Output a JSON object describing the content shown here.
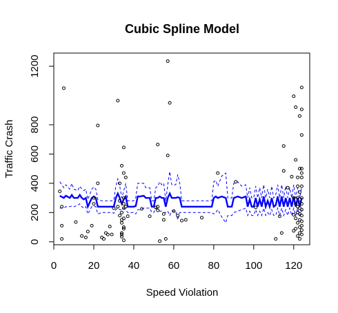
{
  "chart_data": {
    "type": "scatter",
    "title": "Cubic Spline Model",
    "xlabel": "Speed Violation",
    "ylabel": "Traffic Crash",
    "xlim": [
      0,
      128
    ],
    "ylim": [
      -20,
      1290
    ],
    "x_ticks": [
      "0",
      "20",
      "40",
      "60",
      "80",
      "100",
      "120"
    ],
    "y_ticks": [
      "0",
      "200",
      "400",
      "600",
      "800",
      "1200"
    ],
    "y_tick_values": [
      0,
      200,
      400,
      600,
      800,
      1200
    ],
    "x_tick_values": [
      0,
      20,
      40,
      60,
      80,
      100,
      120
    ],
    "grid": false,
    "legend": "none",
    "points": [
      [
        3,
        345
      ],
      [
        4,
        240
      ],
      [
        4,
        110
      ],
      [
        4,
        20
      ],
      [
        5,
        1050
      ],
      [
        11,
        135
      ],
      [
        14,
        40
      ],
      [
        16,
        30
      ],
      [
        17,
        70
      ],
      [
        19,
        110
      ],
      [
        20,
        260
      ],
      [
        20,
        300
      ],
      [
        22,
        795
      ],
      [
        22,
        400
      ],
      [
        24,
        30
      ],
      [
        25,
        20
      ],
      [
        26,
        60
      ],
      [
        27,
        50
      ],
      [
        28,
        105
      ],
      [
        29,
        50
      ],
      [
        30,
        230
      ],
      [
        32,
        965
      ],
      [
        32,
        240
      ],
      [
        33,
        400
      ],
      [
        33,
        280
      ],
      [
        33,
        180
      ],
      [
        34,
        520
      ],
      [
        34,
        200
      ],
      [
        34,
        150
      ],
      [
        34,
        130
      ],
      [
        34,
        60
      ],
      [
        34,
        50
      ],
      [
        34,
        35
      ],
      [
        35,
        645
      ],
      [
        35,
        470
      ],
      [
        35,
        300
      ],
      [
        35,
        260
      ],
      [
        35,
        230
      ],
      [
        35,
        160
      ],
      [
        35,
        100
      ],
      [
        35,
        90
      ],
      [
        35,
        10
      ],
      [
        36,
        440
      ],
      [
        36,
        240
      ],
      [
        37,
        175
      ],
      [
        44,
        225
      ],
      [
        48,
        175
      ],
      [
        51,
        235
      ],
      [
        52,
        665
      ],
      [
        52,
        240
      ],
      [
        52,
        215
      ],
      [
        53,
        5
      ],
      [
        55,
        150
      ],
      [
        55,
        190
      ],
      [
        56,
        20
      ],
      [
        57,
        1235
      ],
      [
        57,
        590
      ],
      [
        58,
        950
      ],
      [
        60,
        210
      ],
      [
        62,
        180
      ],
      [
        64,
        145
      ],
      [
        66,
        150
      ],
      [
        74,
        165
      ],
      [
        82,
        470
      ],
      [
        91,
        410
      ],
      [
        101,
        235
      ],
      [
        111,
        20
      ],
      [
        113,
        175
      ],
      [
        114,
        60
      ],
      [
        115,
        485
      ],
      [
        115,
        655
      ],
      [
        117,
        370
      ],
      [
        119,
        445
      ],
      [
        120,
        995
      ],
      [
        120,
        300
      ],
      [
        120,
        185
      ],
      [
        120,
        75
      ],
      [
        121,
        920
      ],
      [
        121,
        560
      ],
      [
        121,
        260
      ],
      [
        121,
        160
      ],
      [
        121,
        90
      ],
      [
        122,
        440
      ],
      [
        122,
        380
      ],
      [
        122,
        300
      ],
      [
        122,
        240
      ],
      [
        122,
        200
      ],
      [
        122,
        130
      ],
      [
        122,
        40
      ],
      [
        123,
        860
      ],
      [
        123,
        500
      ],
      [
        123,
        340
      ],
      [
        123,
        270
      ],
      [
        123,
        230
      ],
      [
        123,
        190
      ],
      [
        123,
        150
      ],
      [
        123,
        100
      ],
      [
        123,
        60
      ],
      [
        123,
        20
      ],
      [
        124,
        1055
      ],
      [
        124,
        905
      ],
      [
        124,
        730
      ],
      [
        124,
        500
      ],
      [
        124,
        470
      ],
      [
        124,
        440
      ],
      [
        124,
        380
      ],
      [
        124,
        300
      ],
      [
        124,
        260
      ],
      [
        124,
        220
      ],
      [
        124,
        180
      ],
      [
        124,
        140
      ],
      [
        124,
        110
      ],
      [
        124,
        80
      ],
      [
        124,
        50
      ]
    ],
    "series": [
      {
        "style": "solid",
        "color": "#0000ff",
        "x": [
          3,
          5,
          6,
          8,
          9,
          10,
          12,
          13,
          14,
          15,
          16,
          17,
          19,
          20,
          21,
          22,
          24,
          25,
          26,
          27,
          28,
          29,
          30,
          31,
          32,
          33,
          34,
          35,
          36,
          37,
          38,
          40,
          41,
          42,
          43,
          45,
          46,
          48,
          49,
          50,
          51,
          52,
          53,
          54,
          55,
          56,
          57,
          58,
          59,
          61,
          62,
          63,
          64,
          66,
          67,
          69,
          70,
          72,
          74,
          76,
          78,
          79,
          80,
          81,
          82,
          84,
          86,
          87,
          88,
          89,
          90,
          92,
          94,
          96,
          97,
          98,
          99,
          100,
          101,
          102,
          103,
          104,
          105,
          106,
          107,
          108,
          109,
          110,
          111,
          112,
          113,
          114,
          115,
          116,
          117,
          118,
          119,
          120,
          121,
          122,
          123,
          124
        ],
        "y": [
          315,
          300,
          315,
          300,
          320,
          300,
          300,
          320,
          300,
          290,
          300,
          240,
          300,
          310,
          300,
          240,
          240,
          240,
          240,
          240,
          240,
          240,
          240,
          300,
          330,
          300,
          260,
          290,
          310,
          240,
          240,
          240,
          245,
          310,
          310,
          315,
          300,
          300,
          240,
          240,
          300,
          300,
          310,
          300,
          300,
          240,
          300,
          330,
          300,
          300,
          305,
          300,
          240,
          240,
          240,
          240,
          240,
          240,
          240,
          240,
          240,
          240,
          300,
          310,
          300,
          310,
          300,
          240,
          240,
          240,
          300,
          310,
          300,
          310,
          240,
          290,
          240,
          240,
          300,
          240,
          290,
          240,
          310,
          240,
          280,
          240,
          300,
          240,
          250,
          310,
          240,
          310,
          240,
          300,
          240,
          300,
          240,
          310,
          240,
          300,
          240,
          300
        ]
      },
      {
        "style": "dashed",
        "color": "#0000ff",
        "x": [
          3,
          5,
          6,
          8,
          9,
          10,
          12,
          13,
          14,
          15,
          16,
          17,
          19,
          20,
          21,
          22,
          24,
          25,
          26,
          27,
          28,
          29,
          30,
          31,
          32,
          33,
          34,
          35,
          36,
          37,
          38,
          40,
          41,
          42,
          43,
          45,
          46,
          48,
          49,
          50,
          51,
          52,
          53,
          54,
          55,
          56,
          57,
          58,
          59,
          61,
          62,
          63,
          64,
          66,
          67,
          69,
          70,
          72,
          74,
          76,
          78,
          79,
          80,
          81,
          82,
          84,
          86,
          87,
          88,
          89,
          90,
          92,
          94,
          96,
          97,
          98,
          99,
          100,
          101,
          102,
          103,
          104,
          105,
          106,
          107,
          108,
          109,
          110,
          111,
          112,
          113,
          114,
          115,
          116,
          117,
          118,
          119,
          120,
          121,
          122,
          123,
          124
        ],
        "y": [
          410,
          370,
          390,
          360,
          400,
          360,
          350,
          380,
          360,
          350,
          360,
          290,
          360,
          375,
          360,
          290,
          280,
          280,
          280,
          280,
          280,
          280,
          285,
          380,
          430,
          380,
          300,
          350,
          400,
          280,
          280,
          280,
          300,
          400,
          400,
          400,
          370,
          370,
          280,
          280,
          370,
          380,
          410,
          390,
          400,
          280,
          390,
          480,
          390,
          390,
          460,
          400,
          280,
          280,
          280,
          280,
          280,
          280,
          280,
          280,
          280,
          280,
          410,
          420,
          380,
          450,
          470,
          300,
          300,
          300,
          400,
          410,
          380,
          390,
          300,
          370,
          300,
          300,
          380,
          300,
          370,
          300,
          390,
          300,
          360,
          300,
          380,
          300,
          320,
          390,
          300,
          390,
          300,
          380,
          300,
          370,
          300,
          390,
          300,
          370,
          300,
          380
        ]
      },
      {
        "style": "dashed",
        "color": "#0000ff",
        "x": [
          3,
          5,
          6,
          8,
          9,
          10,
          12,
          13,
          14,
          15,
          16,
          17,
          19,
          20,
          21,
          22,
          24,
          25,
          26,
          27,
          28,
          29,
          30,
          31,
          32,
          33,
          34,
          35,
          36,
          37,
          38,
          40,
          41,
          42,
          43,
          45,
          46,
          48,
          49,
          50,
          51,
          52,
          53,
          54,
          55,
          56,
          57,
          58,
          59,
          61,
          62,
          63,
          64,
          66,
          67,
          69,
          70,
          72,
          74,
          76,
          78,
          79,
          80,
          81,
          82,
          84,
          86,
          87,
          88,
          89,
          90,
          92,
          94,
          96,
          97,
          98,
          99,
          100,
          101,
          102,
          103,
          104,
          105,
          106,
          107,
          108,
          109,
          110,
          111,
          112,
          113,
          114,
          115,
          116,
          117,
          118,
          119,
          120,
          121,
          122,
          123,
          124
        ],
        "y": [
          230,
          230,
          240,
          240,
          245,
          240,
          250,
          260,
          240,
          230,
          240,
          190,
          240,
          245,
          240,
          190,
          200,
          200,
          200,
          200,
          200,
          200,
          195,
          220,
          230,
          220,
          220,
          230,
          220,
          200,
          200,
          200,
          190,
          220,
          220,
          230,
          230,
          230,
          200,
          200,
          230,
          220,
          210,
          210,
          200,
          200,
          210,
          180,
          210,
          210,
          150,
          200,
          200,
          200,
          200,
          200,
          200,
          200,
          200,
          200,
          200,
          200,
          190,
          200,
          220,
          170,
          130,
          180,
          180,
          180,
          200,
          210,
          220,
          230,
          180,
          210,
          180,
          180,
          220,
          180,
          210,
          180,
          230,
          180,
          200,
          180,
          220,
          180,
          180,
          230,
          180,
          230,
          180,
          220,
          180,
          230,
          180,
          230,
          180,
          230,
          180,
          220
        ]
      }
    ]
  }
}
